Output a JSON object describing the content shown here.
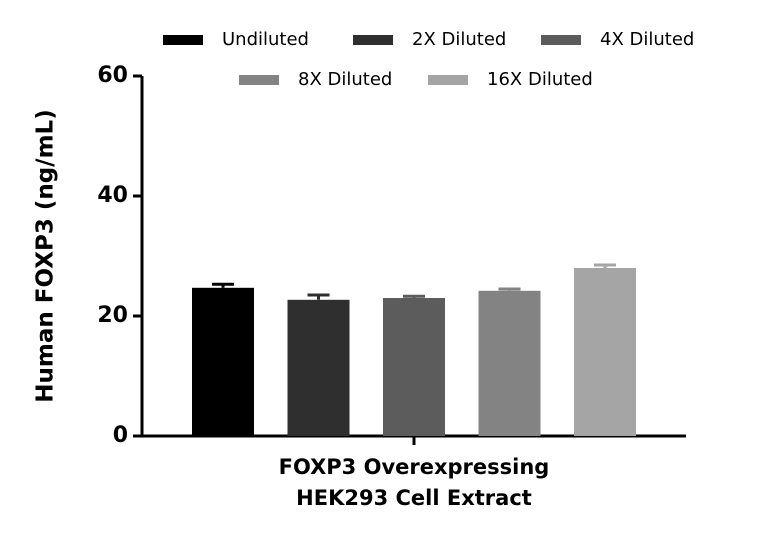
{
  "chart_data": {
    "type": "bar",
    "ylabel": "Human FOXP3 (ng/mL)",
    "categories": [
      "FOXP3 Overexpressing\nHEK293 Cell Extract"
    ],
    "series": [
      {
        "name": "Undiluted",
        "color": "#000000",
        "values": [
          24.7
        ],
        "errors": [
          0.6
        ]
      },
      {
        "name": "2X Diluted",
        "color": "#2f2f2f",
        "values": [
          22.7
        ],
        "errors": [
          0.8
        ]
      },
      {
        "name": "4X Diluted",
        "color": "#5c5c5c",
        "values": [
          23.0
        ],
        "errors": [
          0.3
        ]
      },
      {
        "name": "8X Diluted",
        "color": "#838383",
        "values": [
          24.2
        ],
        "errors": [
          0.3
        ]
      },
      {
        "name": "16X Diluted",
        "color": "#a5a5a5",
        "values": [
          28.0
        ],
        "errors": [
          0.5
        ]
      }
    ],
    "ylim": [
      0,
      60
    ],
    "yticks": [
      0,
      20,
      40,
      60
    ],
    "legend": "top"
  }
}
